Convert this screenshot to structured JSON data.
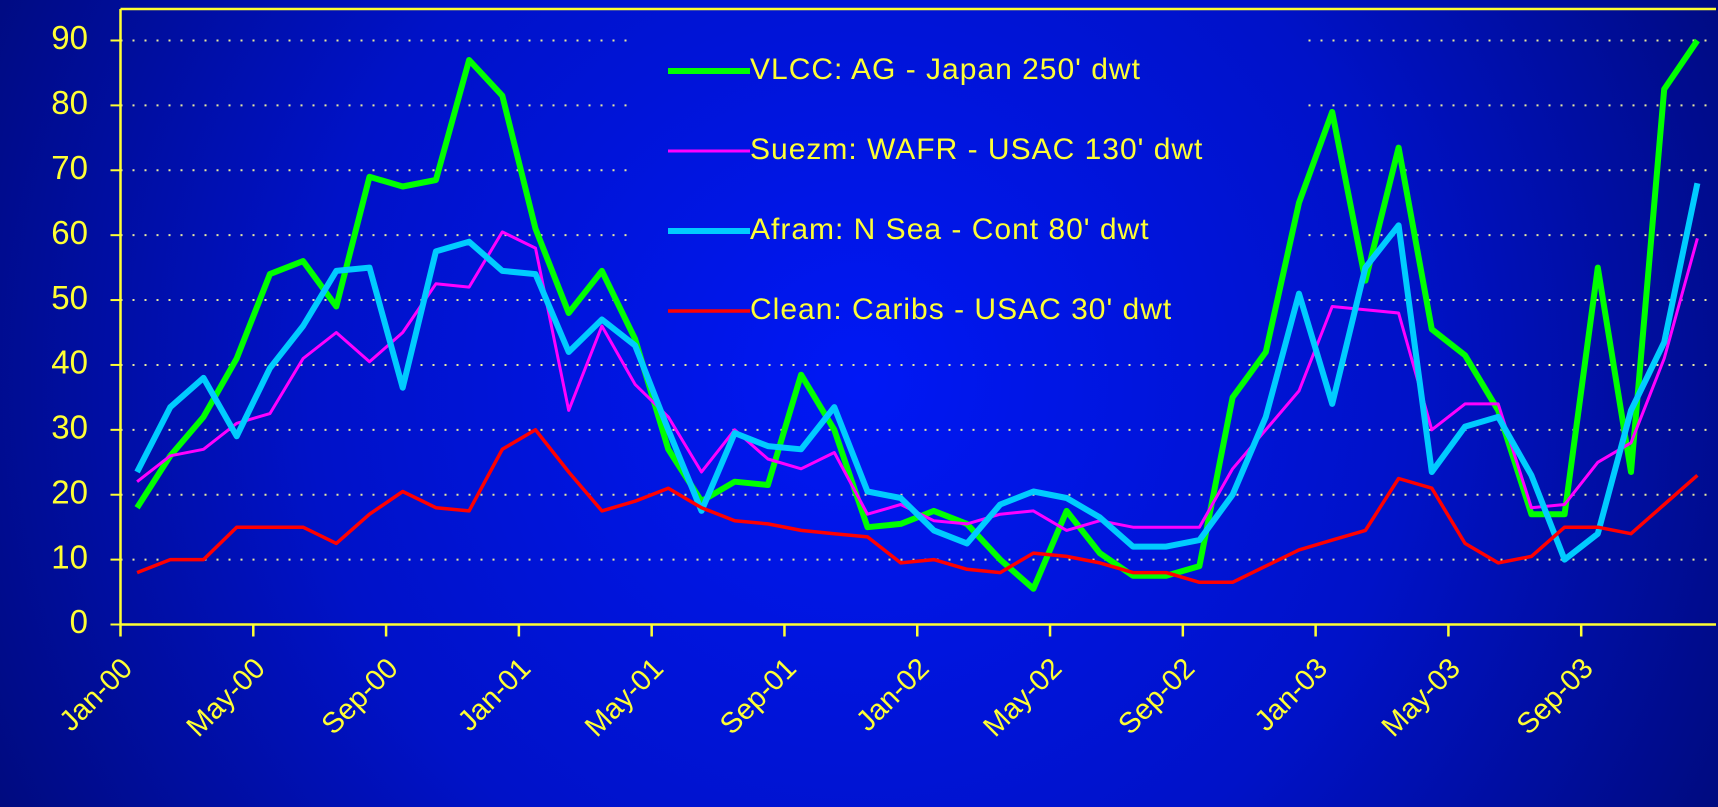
{
  "chart_data": {
    "type": "line",
    "categories": [
      "Jan-00",
      null,
      null,
      null,
      "May-00",
      null,
      null,
      null,
      "Sep-00",
      null,
      null,
      null,
      "Jan-01",
      null,
      null,
      null,
      "May-01",
      null,
      null,
      null,
      "Sep-01",
      null,
      null,
      null,
      "Jan-02",
      null,
      null,
      null,
      "May-02",
      null,
      null,
      null,
      "Sep-02",
      null,
      null,
      null,
      "Jan-03",
      null,
      null,
      null,
      "May-03",
      null,
      null,
      null,
      "Sep-03",
      null,
      null,
      null
    ],
    "series": [
      {
        "name": "VLCC: AG - Japan 250' dwt",
        "color": "#00ff00",
        "values": [
          18,
          26,
          32,
          41,
          54,
          56,
          49,
          69,
          67.5,
          68.5,
          87,
          81.5,
          61,
          48,
          54.5,
          44,
          27,
          19,
          22,
          21.5,
          38.5,
          30,
          15,
          15.5,
          17.5,
          15.5,
          10,
          5.5,
          17.5,
          11,
          7.5,
          7.5,
          9,
          35,
          42,
          65,
          79,
          53,
          73.5,
          45.5,
          41.5,
          33,
          17,
          17,
          55,
          23.5,
          82.5,
          90
        ]
      },
      {
        "name": "Suezm: WAFR - USAC 130' dwt",
        "color": "#ff00ff",
        "values": [
          22,
          26,
          27,
          31,
          32.5,
          41,
          45,
          40.5,
          45,
          52.5,
          52,
          60.5,
          58,
          33,
          46,
          37,
          32,
          23.5,
          30,
          25.5,
          24,
          26.5,
          17,
          18.5,
          16,
          15.5,
          17,
          17.5,
          14.5,
          16,
          15,
          15,
          15,
          24,
          30,
          36,
          49,
          48.5,
          48,
          30,
          34,
          34,
          18,
          18.5,
          25,
          28,
          41,
          59.5
        ]
      },
      {
        "name": "Afram: N Sea - Cont 80' dwt",
        "color": "#00ccff",
        "values": [
          23.5,
          33.5,
          38,
          29,
          39.5,
          46,
          54.5,
          55,
          36.5,
          57.5,
          59,
          54.5,
          54,
          42,
          47,
          43,
          30,
          17.5,
          29.5,
          27.5,
          27,
          33.5,
          20.5,
          19.5,
          14.5,
          12.5,
          18.5,
          20.5,
          19.5,
          16.5,
          12,
          12,
          13,
          20,
          32,
          51,
          34,
          55,
          61.5,
          23.5,
          30.5,
          32,
          23,
          10,
          14,
          33,
          43.5,
          68
        ]
      },
      {
        "name": "Clean: Caribs - USAC  30' dwt",
        "color": "#ff0000",
        "values": [
          8,
          10,
          10,
          15,
          15,
          15,
          12.5,
          17,
          20.5,
          18,
          17.5,
          27,
          30,
          23.5,
          17.5,
          19,
          21,
          18,
          16,
          15.5,
          14.5,
          14,
          13.5,
          9.5,
          10,
          8.5,
          8,
          11,
          10.5,
          9.5,
          8,
          8,
          6.5,
          6.5,
          9,
          11.5,
          13,
          14.5,
          22.5,
          21,
          12.5,
          9.5,
          10.5,
          15,
          15,
          14,
          18.5,
          23
        ]
      }
    ],
    "ylim": [
      0,
      90
    ],
    "yticks": [
      0,
      10,
      20,
      30,
      40,
      50,
      60,
      70,
      80,
      90
    ],
    "grid": true,
    "legend": "top"
  }
}
